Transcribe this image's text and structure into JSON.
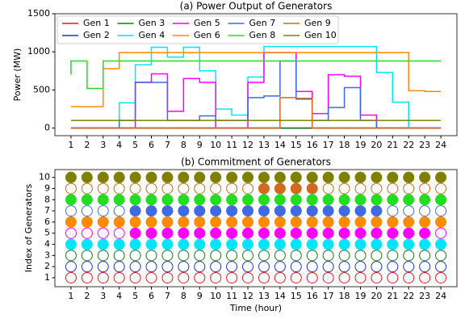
{
  "chart_data": [
    {
      "type": "line",
      "title": "(a) Power Output of Generators",
      "ylabel": "Power (MW)",
      "x": [
        1,
        2,
        3,
        4,
        5,
        6,
        7,
        8,
        9,
        10,
        11,
        12,
        13,
        14,
        15,
        16,
        17,
        18,
        19,
        20,
        21,
        22,
        23,
        24
      ],
      "xlim": [
        0,
        25
      ],
      "ylim": [
        -100,
        1500
      ],
      "yticks": [
        0,
        500,
        1000,
        1500
      ],
      "legend": "upper left",
      "series": [
        {
          "name": "Gen 1",
          "color": "#e41a1c",
          "values": [
            0,
            0,
            0,
            0,
            0,
            0,
            0,
            0,
            0,
            0,
            0,
            0,
            0,
            0,
            0,
            0,
            0,
            0,
            0,
            0,
            0,
            0,
            0,
            0
          ]
        },
        {
          "name": "Gen 2",
          "color": "#2233cc",
          "values": [
            0,
            0,
            0,
            0,
            0,
            0,
            0,
            0,
            0,
            0,
            0,
            0,
            0,
            0,
            0,
            0,
            0,
            0,
            0,
            0,
            0,
            0,
            0,
            0
          ]
        },
        {
          "name": "Gen 3",
          "color": "#1a7a1a",
          "values": [
            0,
            0,
            0,
            0,
            0,
            0,
            0,
            0,
            0,
            0,
            0,
            0,
            0,
            0,
            0,
            0,
            0,
            0,
            0,
            0,
            0,
            0,
            0,
            0
          ]
        },
        {
          "name": "Gen 4",
          "color": "#00e5ff",
          "values": [
            0,
            0,
            0,
            0,
            330,
            830,
            1060,
            930,
            1060,
            750,
            250,
            170,
            670,
            1070,
            1070,
            1070,
            1070,
            1070,
            1070,
            1070,
            730,
            340,
            0,
            0
          ]
        },
        {
          "name": "Gen 5",
          "color": "#ff00ff",
          "values": [
            0,
            0,
            0,
            0,
            0,
            600,
            710,
            220,
            650,
            600,
            0,
            0,
            600,
            990,
            990,
            480,
            190,
            700,
            680,
            170,
            0,
            0,
            0,
            0
          ]
        },
        {
          "name": "Gen 6",
          "color": "#ff8c00",
          "values": [
            280,
            280,
            280,
            780,
            990,
            990,
            990,
            990,
            990,
            990,
            990,
            990,
            990,
            990,
            990,
            990,
            990,
            990,
            990,
            990,
            990,
            990,
            490,
            480
          ]
        },
        {
          "name": "Gen 7",
          "color": "#4169e1",
          "values": [
            0,
            0,
            0,
            0,
            100,
            600,
            600,
            100,
            100,
            160,
            100,
            100,
            400,
            420,
            880,
            380,
            100,
            270,
            530,
            100,
            0,
            0,
            0,
            0
          ]
        },
        {
          "name": "Gen 8",
          "color": "#22dd22",
          "values": [
            700,
            880,
            520,
            880,
            880,
            880,
            880,
            880,
            880,
            880,
            880,
            880,
            880,
            880,
            880,
            880,
            880,
            880,
            880,
            880,
            880,
            880,
            880,
            880
          ]
        },
        {
          "name": "Gen 9",
          "color": "#d2691e",
          "values": [
            0,
            0,
            0,
            0,
            0,
            0,
            0,
            0,
            0,
            0,
            0,
            0,
            0,
            0,
            400,
            390,
            0,
            0,
            0,
            0,
            0,
            0,
            0,
            0
          ]
        },
        {
          "name": "Gen 10",
          "color": "#808000",
          "values": [
            100,
            100,
            100,
            100,
            100,
            100,
            100,
            100,
            100,
            100,
            100,
            100,
            100,
            100,
            100,
            100,
            100,
            100,
            100,
            100,
            100,
            100,
            100,
            100
          ]
        }
      ]
    },
    {
      "type": "scatter",
      "title": "(b) Commitment of Generators",
      "xlabel": "Time (hour)",
      "ylabel": "Index of Generators",
      "x": [
        1,
        2,
        3,
        4,
        5,
        6,
        7,
        8,
        9,
        10,
        11,
        12,
        13,
        14,
        15,
        16,
        17,
        18,
        19,
        20,
        21,
        22,
        23,
        24
      ],
      "xlim": [
        0,
        25
      ],
      "ylim": [
        0.2,
        10.7
      ],
      "yticks": [
        1,
        2,
        3,
        4,
        5,
        6,
        7,
        8,
        9,
        10
      ],
      "series": [
        {
          "color": "#e41a1c",
          "values": [
            0,
            0,
            0,
            0,
            0,
            0,
            0,
            0,
            0,
            0,
            0,
            0,
            0,
            0,
            0,
            0,
            0,
            0,
            0,
            0,
            0,
            0,
            0,
            0
          ]
        },
        {
          "color": "#2233cc",
          "values": [
            0,
            0,
            0,
            0,
            0,
            0,
            0,
            0,
            0,
            0,
            0,
            0,
            0,
            0,
            0,
            0,
            0,
            0,
            0,
            0,
            0,
            0,
            0,
            0
          ]
        },
        {
          "color": "#1a7a1a",
          "values": [
            0,
            0,
            0,
            0,
            0,
            0,
            0,
            0,
            0,
            0,
            0,
            0,
            0,
            0,
            0,
            0,
            0,
            0,
            0,
            0,
            0,
            0,
            0,
            0
          ]
        },
        {
          "color": "#00e5ff",
          "values": [
            1,
            1,
            1,
            1,
            1,
            1,
            1,
            1,
            1,
            1,
            1,
            1,
            1,
            1,
            1,
            1,
            1,
            1,
            1,
            1,
            1,
            1,
            1,
            1
          ]
        },
        {
          "color": "#ff00ff",
          "values": [
            0,
            0,
            0,
            0,
            1,
            1,
            1,
            1,
            1,
            1,
            1,
            1,
            1,
            1,
            1,
            1,
            1,
            1,
            1,
            1,
            1,
            1,
            1,
            0
          ]
        },
        {
          "color": "#ff8c00",
          "values": [
            1,
            1,
            1,
            1,
            1,
            1,
            1,
            1,
            1,
            1,
            1,
            1,
            1,
            1,
            1,
            1,
            1,
            1,
            1,
            1,
            1,
            1,
            1,
            1
          ]
        },
        {
          "color": "#4169e1",
          "values": [
            0,
            0,
            0,
            0,
            1,
            1,
            1,
            1,
            1,
            1,
            1,
            1,
            1,
            1,
            1,
            1,
            1,
            1,
            1,
            1,
            0,
            0,
            0,
            0
          ]
        },
        {
          "color": "#22dd22",
          "values": [
            1,
            1,
            1,
            1,
            1,
            1,
            1,
            1,
            1,
            1,
            1,
            1,
            1,
            1,
            1,
            1,
            1,
            1,
            1,
            1,
            1,
            1,
            1,
            1
          ]
        },
        {
          "color": "#d2691e",
          "values": [
            0,
            0,
            0,
            0,
            0,
            0,
            0,
            0,
            0,
            0,
            0,
            0,
            1,
            1,
            1,
            1,
            0,
            0,
            0,
            0,
            0,
            0,
            0,
            0
          ]
        },
        {
          "color": "#808000",
          "values": [
            1,
            1,
            1,
            1,
            1,
            1,
            1,
            1,
            1,
            1,
            1,
            1,
            1,
            1,
            1,
            1,
            1,
            1,
            1,
            1,
            1,
            1,
            1,
            1
          ]
        }
      ]
    }
  ]
}
